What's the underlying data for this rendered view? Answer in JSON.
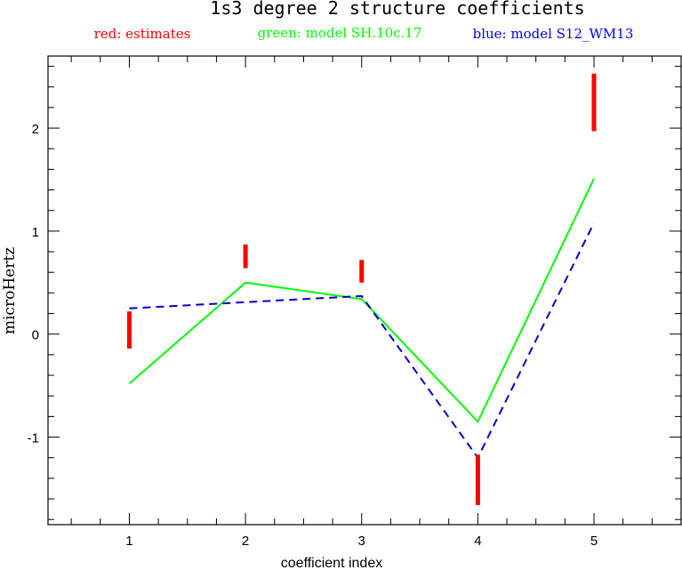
{
  "chart_data": {
    "type": "line",
    "title": "1s3 degree 2 structure coefficients",
    "xlabel": "coefficient index",
    "ylabel": "microHertz",
    "x_ticks": [
      1,
      2,
      3,
      4,
      5
    ],
    "y_ticks": [
      -1,
      0,
      1,
      2
    ],
    "xlim": [
      0.3,
      5.75
    ],
    "ylim": [
      -1.85,
      2.7
    ],
    "grid": false,
    "legend_placement": "top",
    "legend": [
      {
        "label": "red: estimates",
        "color": "#ff0000"
      },
      {
        "label": "green: model SH.10c.17",
        "color": "#00ff00"
      },
      {
        "label": "blue: model S12_WM13",
        "color": "#0000ff"
      }
    ],
    "error_bars": {
      "color": "#ff0000",
      "points": [
        {
          "x": 1,
          "low": -0.14,
          "high": 0.22
        },
        {
          "x": 2,
          "low": 0.64,
          "high": 0.87
        },
        {
          "x": 3,
          "low": 0.5,
          "high": 0.72
        },
        {
          "x": 4,
          "low": -1.66,
          "high": -1.17
        },
        {
          "x": 5,
          "low": 1.97,
          "high": 2.53
        }
      ]
    },
    "series": [
      {
        "color": "#00ff00",
        "style": "solid",
        "x": [
          1,
          2,
          3,
          4,
          5
        ],
        "y": [
          -0.48,
          0.5,
          0.34,
          -0.85,
          1.51
        ]
      },
      {
        "color": "#0000cc",
        "style": "dashed",
        "x": [
          1,
          2,
          3,
          4,
          5
        ],
        "y": [
          0.25,
          0.31,
          0.37,
          -1.2,
          1.08
        ]
      }
    ]
  }
}
